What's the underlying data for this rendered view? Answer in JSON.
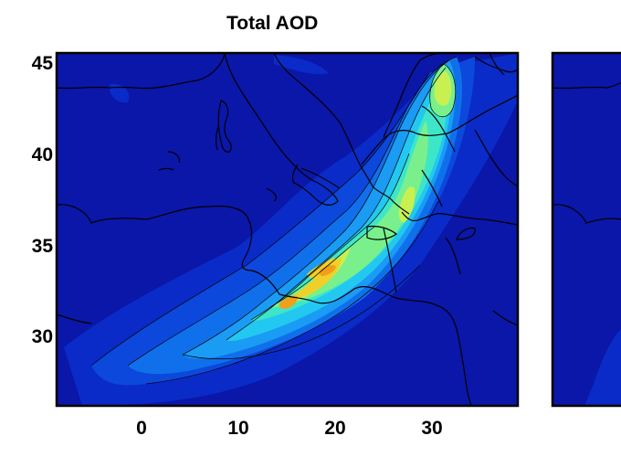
{
  "map": {
    "title": "Total AOD",
    "lat_ticks": [
      "45",
      "40",
      "35",
      "30"
    ],
    "lon_ticks": [
      "0",
      "10",
      "20",
      "30"
    ],
    "colormap": {
      "background": "#0a17a8",
      "level1": "#0a2bc8",
      "level2": "#0c48dc",
      "level3": "#1070ec",
      "level4": "#1a9bf4",
      "level5": "#22c8f0",
      "level6": "#3ee6c8",
      "level7": "#7af08c",
      "level8": "#c8f050",
      "level9": "#f0d028",
      "level10": "#f0a018"
    },
    "second_panel": "partial-adjacent-panel"
  }
}
